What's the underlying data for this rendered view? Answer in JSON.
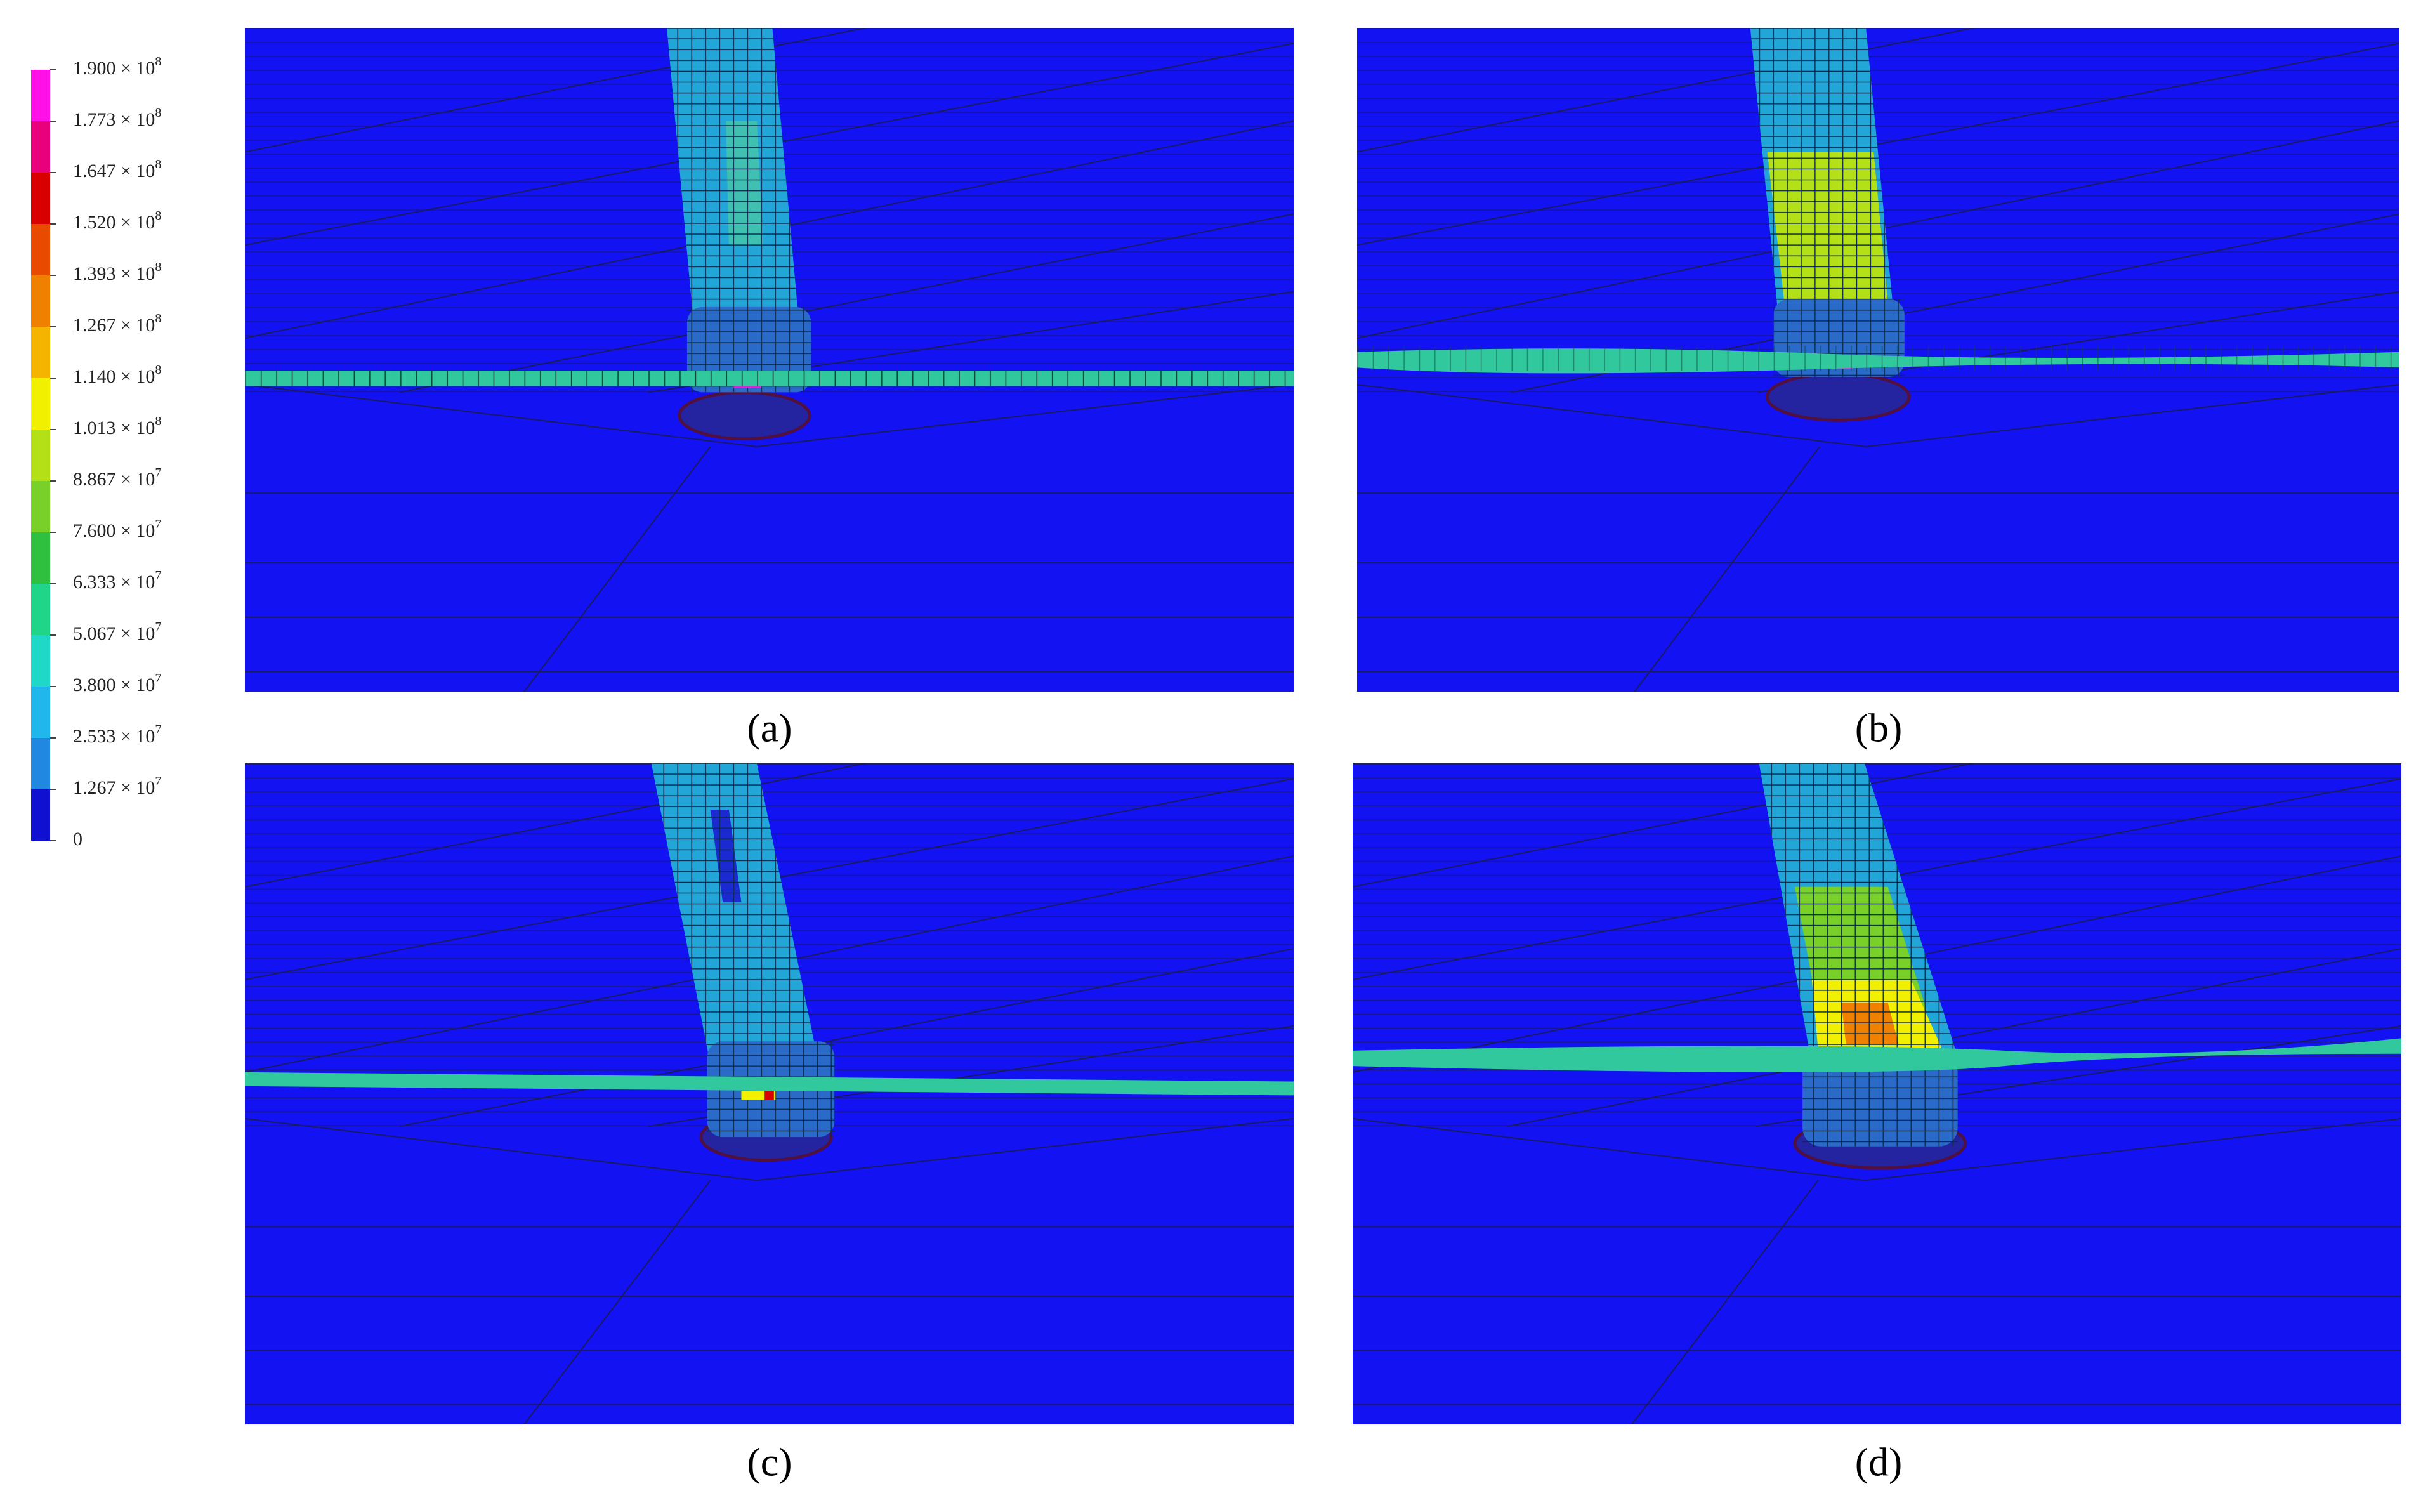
{
  "legend": {
    "labels": [
      {
        "base": "1.900 × 10",
        "exp": "8"
      },
      {
        "base": "1.773 × 10",
        "exp": "8"
      },
      {
        "base": "1.647 × 10",
        "exp": "8"
      },
      {
        "base": "1.520 × 10",
        "exp": "8"
      },
      {
        "base": "1.393 × 10",
        "exp": "8"
      },
      {
        "base": "1.267 × 10",
        "exp": "8"
      },
      {
        "base": "1.140 × 10",
        "exp": "8"
      },
      {
        "base": "1.013 × 10",
        "exp": "8"
      },
      {
        "base": "8.867 × 10",
        "exp": "7"
      },
      {
        "base": "7.600 × 10",
        "exp": "7"
      },
      {
        "base": "6.333 × 10",
        "exp": "7"
      },
      {
        "base": "5.067 × 10",
        "exp": "7"
      },
      {
        "base": "3.800 × 10",
        "exp": "7"
      },
      {
        "base": "2.533 × 10",
        "exp": "7"
      },
      {
        "base": "1.267 × 10",
        "exp": "7"
      },
      {
        "base": "0"
      }
    ],
    "colors": [
      "#ff10e8",
      "#e8007c",
      "#d80000",
      "#e84a00",
      "#f08000",
      "#f5b400",
      "#f0f000",
      "#b4e018",
      "#78d028",
      "#30c040",
      "#20d488",
      "#20d8c8",
      "#20b8ec",
      "#2088e0",
      "#1010d0"
    ]
  },
  "panels": [
    {
      "caption": "(a)"
    },
    {
      "caption": "(b)"
    },
    {
      "caption": "(c)"
    },
    {
      "caption": "(d)"
    }
  ]
}
